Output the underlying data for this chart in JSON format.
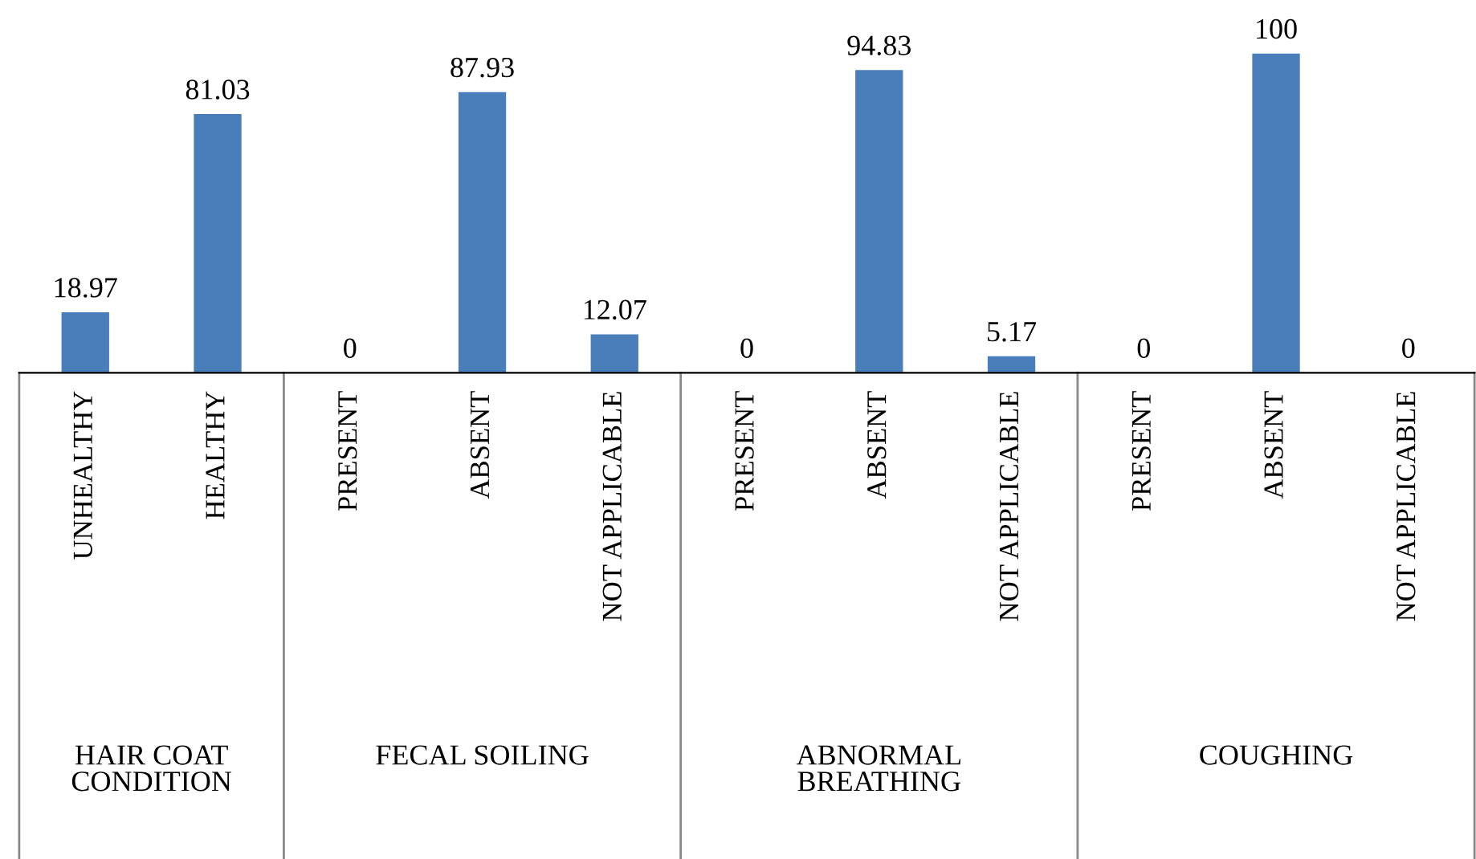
{
  "chart_data": {
    "type": "bar",
    "categories": [
      "UNHEALTHY",
      "HEALTHY",
      "PRESENT",
      "ABSENT",
      "NOT APPLICABLE",
      "PRESENT",
      "ABSENT",
      "NOT APPLICABLE",
      "PRESENT",
      "ABSENT",
      "NOT APPLICABLE"
    ],
    "values": [
      18.97,
      81.03,
      0,
      87.93,
      12.07,
      0,
      94.83,
      5.17,
      0,
      100,
      0
    ],
    "color": "#4a7ebb",
    "data_labels": true,
    "grid": false,
    "legend": false,
    "annotations": [
      "HAIR COAT\nCONDITION",
      "FECAL SOILING",
      "ABNORMAL\nBREATHING",
      "COUGHING"
    ]
  }
}
